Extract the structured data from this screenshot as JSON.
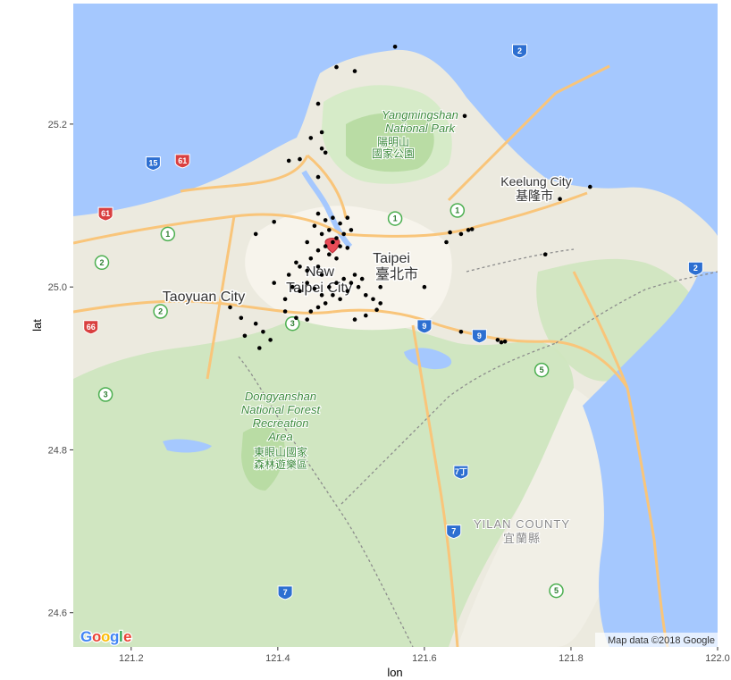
{
  "axes": {
    "x_title": "lon",
    "y_title": "lat",
    "x_ticks": [
      {
        "value": 121.2,
        "label": "121.2"
      },
      {
        "value": 121.4,
        "label": "121.4"
      },
      {
        "value": 121.6,
        "label": "121.6"
      },
      {
        "value": 121.8,
        "label": "121.8"
      },
      {
        "value": 122.0,
        "label": "122.0"
      }
    ],
    "y_ticks": [
      {
        "value": 24.6,
        "label": "24.6"
      },
      {
        "value": 24.8,
        "label": "24.8"
      },
      {
        "value": 25.0,
        "label": "25.0"
      },
      {
        "value": 25.2,
        "label": "25.2"
      }
    ],
    "x_range": [
      121.121,
      122.0
    ],
    "y_range": [
      24.558,
      25.348
    ]
  },
  "labels": {
    "taipei_en": "Taipei",
    "taipei_zh": "臺北市",
    "new_taipei_1": "New",
    "new_taipei_2": "Taipei City",
    "taoyuan": "Taoyuan City",
    "keelung_en": "Keelung City",
    "keelung_zh": "基隆市",
    "yilan_en": "YILAN COUNTY",
    "yilan_zh": "宜蘭縣",
    "yangming_1": "Yangmingshan",
    "yangming_2": "National Park",
    "yangming_3": "陽明山",
    "yangming_4": "國家公園",
    "dongyan_1": "Dongyanshan",
    "dongyan_2": "National Forest",
    "dongyan_3": "Recreation",
    "dongyan_4": "Area",
    "dongyan_5": "東眼山國家",
    "dongyan_6": "森林遊樂區"
  },
  "shields": [
    {
      "label": "2",
      "lon": 121.73,
      "lat": 25.29,
      "kind": "national"
    },
    {
      "label": "15",
      "lon": 121.23,
      "lat": 25.152,
      "kind": "national"
    },
    {
      "label": "61",
      "lon": 121.27,
      "lat": 25.155,
      "kind": "expressway"
    },
    {
      "label": "61",
      "lon": 121.165,
      "lat": 25.09,
      "kind": "expressway"
    },
    {
      "label": "1",
      "lon": 121.25,
      "lat": 25.065,
      "kind": "provincial"
    },
    {
      "label": "2",
      "lon": 121.16,
      "lat": 25.03,
      "kind": "provincial"
    },
    {
      "label": "1",
      "lon": 121.56,
      "lat": 25.084,
      "kind": "provincial"
    },
    {
      "label": "1",
      "lon": 121.645,
      "lat": 25.094,
      "kind": "provincial"
    },
    {
      "label": "2",
      "lon": 121.24,
      "lat": 24.97,
      "kind": "provincial"
    },
    {
      "label": "66",
      "lon": 121.145,
      "lat": 24.951,
      "kind": "expressway"
    },
    {
      "label": "3",
      "lon": 121.42,
      "lat": 24.955,
      "kind": "provincial"
    },
    {
      "label": "9",
      "lon": 121.6,
      "lat": 24.952,
      "kind": "national"
    },
    {
      "label": "9",
      "lon": 121.675,
      "lat": 24.94,
      "kind": "national"
    },
    {
      "label": "3",
      "lon": 121.165,
      "lat": 24.868,
      "kind": "provincial"
    },
    {
      "label": "5",
      "lon": 121.76,
      "lat": 24.898,
      "kind": "provincial"
    },
    {
      "label": "2",
      "lon": 121.97,
      "lat": 25.023,
      "kind": "national"
    },
    {
      "label": "7丁",
      "lon": 121.65,
      "lat": 24.773,
      "kind": "national"
    },
    {
      "label": "7",
      "lon": 121.64,
      "lat": 24.7,
      "kind": "national"
    },
    {
      "label": "7",
      "lon": 121.41,
      "lat": 24.625,
      "kind": "national"
    },
    {
      "label": "5",
      "lon": 121.78,
      "lat": 24.627,
      "kind": "provincial"
    }
  ],
  "points": [
    {
      "lon": 121.56,
      "lat": 25.295
    },
    {
      "lon": 121.48,
      "lat": 25.27
    },
    {
      "lon": 121.505,
      "lat": 25.265
    },
    {
      "lon": 121.455,
      "lat": 25.225
    },
    {
      "lon": 121.655,
      "lat": 25.21
    },
    {
      "lon": 121.46,
      "lat": 25.19
    },
    {
      "lon": 121.445,
      "lat": 25.183
    },
    {
      "lon": 121.46,
      "lat": 25.17
    },
    {
      "lon": 121.465,
      "lat": 25.165
    },
    {
      "lon": 121.415,
      "lat": 25.155
    },
    {
      "lon": 121.43,
      "lat": 25.157
    },
    {
      "lon": 121.455,
      "lat": 25.135
    },
    {
      "lon": 121.826,
      "lat": 25.123
    },
    {
      "lon": 121.785,
      "lat": 25.108
    },
    {
      "lon": 121.395,
      "lat": 25.08
    },
    {
      "lon": 121.37,
      "lat": 25.065
    },
    {
      "lon": 121.455,
      "lat": 25.09
    },
    {
      "lon": 121.465,
      "lat": 25.082
    },
    {
      "lon": 121.475,
      "lat": 25.085
    },
    {
      "lon": 121.485,
      "lat": 25.078
    },
    {
      "lon": 121.495,
      "lat": 25.085
    },
    {
      "lon": 121.45,
      "lat": 25.075
    },
    {
      "lon": 121.46,
      "lat": 25.065
    },
    {
      "lon": 121.47,
      "lat": 25.07
    },
    {
      "lon": 121.48,
      "lat": 25.06
    },
    {
      "lon": 121.49,
      "lat": 25.065
    },
    {
      "lon": 121.5,
      "lat": 25.07
    },
    {
      "lon": 121.475,
      "lat": 25.055
    },
    {
      "lon": 121.485,
      "lat": 25.05
    },
    {
      "lon": 121.495,
      "lat": 25.048
    },
    {
      "lon": 121.465,
      "lat": 25.05
    },
    {
      "lon": 121.44,
      "lat": 25.055
    },
    {
      "lon": 121.455,
      "lat": 25.045
    },
    {
      "lon": 121.47,
      "lat": 25.04
    },
    {
      "lon": 121.48,
      "lat": 25.035
    },
    {
      "lon": 121.445,
      "lat": 25.035
    },
    {
      "lon": 121.455,
      "lat": 25.025
    },
    {
      "lon": 121.46,
      "lat": 25.015
    },
    {
      "lon": 121.43,
      "lat": 25.025
    },
    {
      "lon": 121.425,
      "lat": 25.03
    },
    {
      "lon": 121.44,
      "lat": 25.02
    },
    {
      "lon": 121.415,
      "lat": 25.015
    },
    {
      "lon": 121.395,
      "lat": 25.005
    },
    {
      "lon": 121.42,
      "lat": 25.0
    },
    {
      "lon": 121.43,
      "lat": 24.995
    },
    {
      "lon": 121.44,
      "lat": 25.005
    },
    {
      "lon": 121.45,
      "lat": 24.998
    },
    {
      "lon": 121.46,
      "lat": 24.99
    },
    {
      "lon": 121.47,
      "lat": 25.0
    },
    {
      "lon": 121.48,
      "lat": 25.005
    },
    {
      "lon": 121.49,
      "lat": 25.01
    },
    {
      "lon": 121.5,
      "lat": 25.005
    },
    {
      "lon": 121.51,
      "lat": 25.0
    },
    {
      "lon": 121.515,
      "lat": 25.01
    },
    {
      "lon": 121.505,
      "lat": 25.015
    },
    {
      "lon": 121.495,
      "lat": 24.995
    },
    {
      "lon": 121.485,
      "lat": 24.985
    },
    {
      "lon": 121.475,
      "lat": 24.99
    },
    {
      "lon": 121.465,
      "lat": 24.98
    },
    {
      "lon": 121.455,
      "lat": 24.975
    },
    {
      "lon": 121.445,
      "lat": 24.97
    },
    {
      "lon": 121.44,
      "lat": 24.96
    },
    {
      "lon": 121.425,
      "lat": 24.962
    },
    {
      "lon": 121.41,
      "lat": 24.97
    },
    {
      "lon": 121.41,
      "lat": 24.985
    },
    {
      "lon": 121.52,
      "lat": 24.99
    },
    {
      "lon": 121.53,
      "lat": 24.985
    },
    {
      "lon": 121.54,
      "lat": 24.98
    },
    {
      "lon": 121.535,
      "lat": 24.972
    },
    {
      "lon": 121.52,
      "lat": 24.965
    },
    {
      "lon": 121.505,
      "lat": 24.96
    },
    {
      "lon": 121.54,
      "lat": 25.0
    },
    {
      "lon": 121.6,
      "lat": 25.0
    },
    {
      "lon": 121.63,
      "lat": 25.055
    },
    {
      "lon": 121.635,
      "lat": 25.067
    },
    {
      "lon": 121.65,
      "lat": 25.065
    },
    {
      "lon": 121.66,
      "lat": 25.07
    },
    {
      "lon": 121.665,
      "lat": 25.071
    },
    {
      "lon": 121.765,
      "lat": 25.04
    },
    {
      "lon": 121.335,
      "lat": 24.975
    },
    {
      "lon": 121.37,
      "lat": 24.955
    },
    {
      "lon": 121.38,
      "lat": 24.945
    },
    {
      "lon": 121.39,
      "lat": 24.935
    },
    {
      "lon": 121.375,
      "lat": 24.925
    },
    {
      "lon": 121.355,
      "lat": 24.94
    },
    {
      "lon": 121.35,
      "lat": 24.962
    },
    {
      "lon": 121.65,
      "lat": 24.945
    },
    {
      "lon": 121.7,
      "lat": 24.935
    },
    {
      "lon": 121.705,
      "lat": 24.932
    },
    {
      "lon": 121.71,
      "lat": 24.933
    }
  ],
  "colors": {
    "water": "#a5c8fe",
    "land": "#eceadf",
    "forest": "#cfe6bf",
    "park": "#b9dca4",
    "highway": "#f9c57a",
    "point": "#000000",
    "marker": "#e94b57"
  },
  "attribution": "Map data ©2018 Google",
  "logo": {
    "letters": [
      "G",
      "o",
      "o",
      "g",
      "l",
      "e"
    ],
    "colors": [
      "#4285f4",
      "#ea4335",
      "#fbbc05",
      "#4285f4",
      "#34a853",
      "#ea4335"
    ]
  }
}
